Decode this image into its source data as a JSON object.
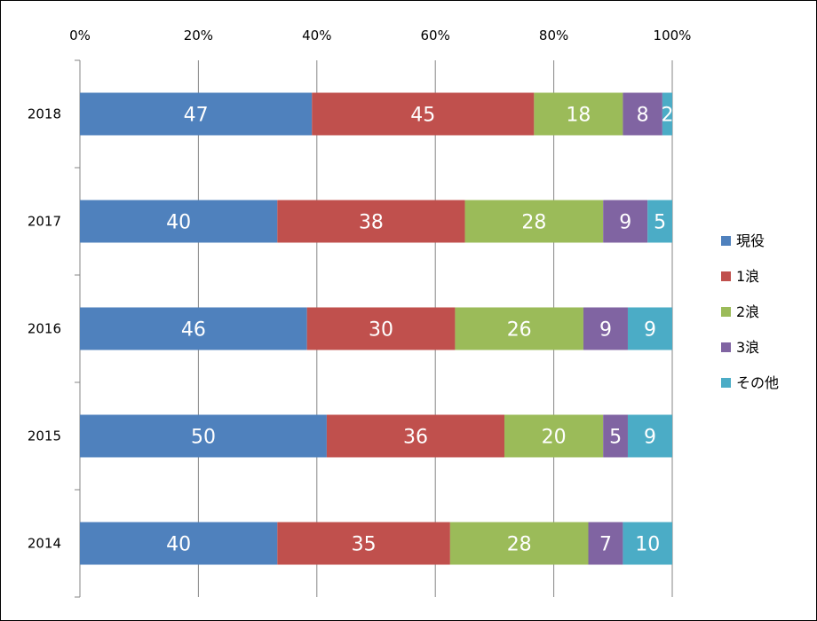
{
  "chart_data": {
    "type": "bar",
    "orientation": "horizontal",
    "stacked": "percent",
    "categories": [
      "2018",
      "2017",
      "2016",
      "2015",
      "2014"
    ],
    "series": [
      {
        "name": "現役",
        "color": "#4F81BD",
        "values": [
          47,
          40,
          46,
          50,
          40
        ]
      },
      {
        "name": "1浪",
        "color": "#C0504D",
        "values": [
          45,
          38,
          30,
          36,
          35
        ]
      },
      {
        "name": "2浪",
        "color": "#9BBB59",
        "values": [
          18,
          28,
          26,
          20,
          28
        ]
      },
      {
        "name": "3浪",
        "color": "#8064A2",
        "values": [
          8,
          9,
          9,
          5,
          7
        ]
      },
      {
        "name": "その他",
        "color": "#4BACC6",
        "values": [
          2,
          5,
          9,
          9,
          10
        ]
      }
    ],
    "x_ticks": [
      "0%",
      "20%",
      "40%",
      "60%",
      "80%",
      "100%"
    ],
    "xlim": [
      0,
      100
    ],
    "title": "",
    "xlabel": "",
    "ylabel": "",
    "legend_position": "right",
    "grid": true
  }
}
